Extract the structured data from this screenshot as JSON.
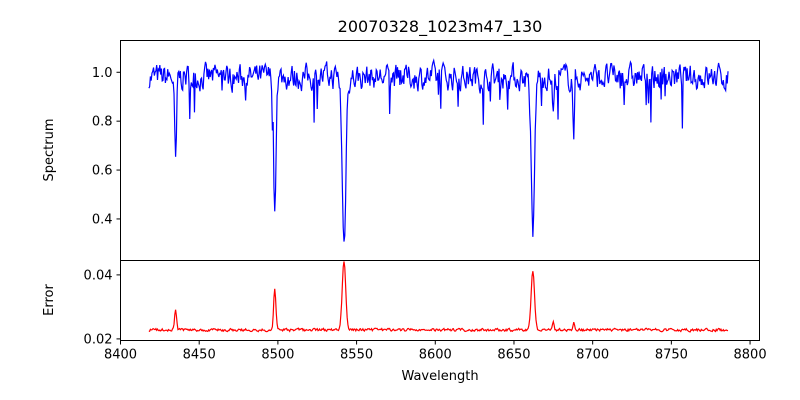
{
  "chart_data": [
    {
      "type": "line",
      "panel": "top",
      "title": "20070328_1023m47_130",
      "ylabel": "Spectrum",
      "xlim": [
        8400,
        8806
      ],
      "ylim": [
        0.23,
        1.13
      ],
      "yticks": [
        0.4,
        0.6,
        0.8,
        1.0
      ],
      "ytick_labels": [
        "0.4",
        "0.6",
        "0.8",
        "1.0"
      ],
      "series_color": "#0000ff",
      "continuum": 0.98,
      "absorption_lines": [
        {
          "wavelength": 8435,
          "min": 0.62,
          "width": 0.9
        },
        {
          "wavelength": 8498,
          "min": 0.42,
          "width": 1.0
        },
        {
          "wavelength": 8542,
          "min": 0.29,
          "width": 1.6
        },
        {
          "wavelength": 8662,
          "min": 0.32,
          "width": 1.5
        },
        {
          "wavelength": 8688,
          "min": 0.7,
          "width": 0.6
        },
        {
          "wavelength": 8675,
          "min": 0.83,
          "width": 0.8
        }
      ],
      "x_range": [
        8418,
        8786
      ]
    },
    {
      "type": "line",
      "panel": "bottom",
      "xlabel": "Wavelength",
      "ylabel": "Error",
      "xlim": [
        8400,
        8806
      ],
      "ylim": [
        0.0195,
        0.0445
      ],
      "xticks": [
        8400,
        8450,
        8500,
        8550,
        8600,
        8650,
        8700,
        8750,
        8800
      ],
      "xtick_labels": [
        "8400",
        "8450",
        "8500",
        "8550",
        "8600",
        "8650",
        "8700",
        "8750",
        "8800"
      ],
      "yticks": [
        0.02,
        0.04
      ],
      "ytick_labels": [
        "0.02",
        "0.04"
      ],
      "series_color": "#ff0000",
      "baseline": 0.0228,
      "emission_lines": [
        {
          "wavelength": 8435,
          "max": 0.029,
          "width": 0.9
        },
        {
          "wavelength": 8498,
          "max": 0.0356,
          "width": 1.0
        },
        {
          "wavelength": 8542,
          "max": 0.044,
          "width": 1.6
        },
        {
          "wavelength": 8662,
          "max": 0.0412,
          "width": 1.5
        },
        {
          "wavelength": 8675,
          "max": 0.0255,
          "width": 0.8
        },
        {
          "wavelength": 8688,
          "max": 0.025,
          "width": 0.6
        }
      ],
      "x_range": [
        8418,
        8786
      ]
    }
  ]
}
